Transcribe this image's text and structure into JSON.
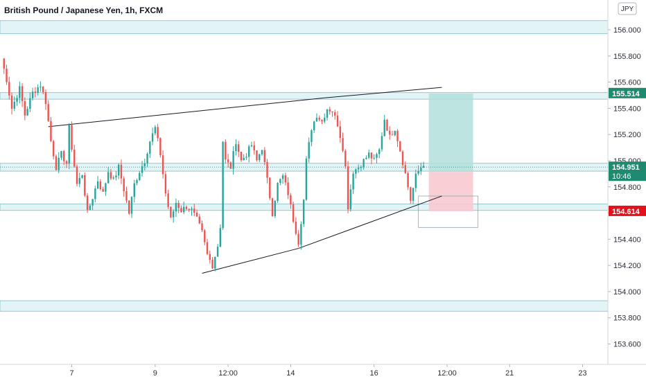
{
  "header": {
    "title": "British Pound / Japanese Yen, 1h, FXCM",
    "currency_badge": "JPY"
  },
  "colors": {
    "up": "#26a69a",
    "down": "#ef5350",
    "zone_fill": "#e3f4f7",
    "zone_stroke": "#80b9c2",
    "profit_fill": "#b2dfdb",
    "loss_fill": "#f8c9cf",
    "current_price_tag": "#1f8a70",
    "entry_tag": "#787b86",
    "stop_tag": "#e0131c"
  },
  "chart_data": {
    "type": "candlestick",
    "title": "British Pound / Japanese Yen, 1h, FXCM",
    "ylim": [
      153.45,
      156.2
    ],
    "y_ticks": [
      "156.000",
      "155.800",
      "155.600",
      "155.400",
      "155.200",
      "155.000",
      "154.800",
      "154.600",
      "154.400",
      "154.200",
      "154.000",
      "153.800",
      "153.600"
    ],
    "y_tick_values": [
      156.0,
      155.8,
      155.6,
      155.4,
      155.2,
      155.0,
      154.8,
      154.6,
      154.4,
      154.2,
      154.0,
      153.8,
      153.6
    ],
    "x_ticks": [
      "7",
      "9",
      "12:00",
      "14",
      "16",
      "12:00",
      "21",
      "23"
    ],
    "x_tick_bars": [
      28,
      60,
      88,
      112,
      144,
      172,
      196,
      224
    ],
    "x_range_bars": [
      1,
      228
    ],
    "grid": false,
    "price_path": [
      [
        1,
        155.78
      ],
      [
        3,
        155.62
      ],
      [
        5,
        155.4
      ],
      [
        8,
        155.55
      ],
      [
        10,
        155.35
      ],
      [
        13,
        155.52
      ],
      [
        16,
        155.58
      ],
      [
        18,
        155.45
      ],
      [
        20,
        155.15
      ],
      [
        22,
        154.95
      ],
      [
        24,
        155.05
      ],
      [
        26,
        154.98
      ],
      [
        27,
        155.25
      ],
      [
        28,
        155.1
      ],
      [
        30,
        154.82
      ],
      [
        32,
        154.9
      ],
      [
        34,
        154.6
      ],
      [
        36,
        154.72
      ],
      [
        38,
        154.85
      ],
      [
        40,
        154.75
      ],
      [
        42,
        154.92
      ],
      [
        44,
        154.85
      ],
      [
        46,
        154.95
      ],
      [
        48,
        154.78
      ],
      [
        50,
        154.6
      ],
      [
        52,
        154.82
      ],
      [
        54,
        154.92
      ],
      [
        56,
        155.0
      ],
      [
        58,
        155.15
      ],
      [
        60,
        155.25
      ],
      [
        62,
        155.05
      ],
      [
        64,
        154.75
      ],
      [
        66,
        154.55
      ],
      [
        68,
        154.68
      ],
      [
        70,
        154.62
      ],
      [
        72,
        154.65
      ],
      [
        74,
        154.62
      ],
      [
        76,
        154.55
      ],
      [
        78,
        154.45
      ],
      [
        80,
        154.28
      ],
      [
        82,
        154.2
      ],
      [
        84,
        154.35
      ],
      [
        85,
        154.5
      ],
      [
        86,
        155.15
      ],
      [
        87,
        155.0
      ],
      [
        89,
        154.95
      ],
      [
        91,
        155.15
      ],
      [
        93,
        155.0
      ],
      [
        95,
        155.05
      ],
      [
        97,
        155.12
      ],
      [
        99,
        155.0
      ],
      [
        101,
        155.1
      ],
      [
        103,
        154.85
      ],
      [
        105,
        154.6
      ],
      [
        107,
        154.82
      ],
      [
        109,
        154.88
      ],
      [
        111,
        154.75
      ],
      [
        113,
        154.55
      ],
      [
        115,
        154.38
      ],
      [
        117,
        154.7
      ],
      [
        118,
        155.0
      ],
      [
        120,
        155.25
      ],
      [
        122,
        155.35
      ],
      [
        124,
        155.3
      ],
      [
        126,
        155.4
      ],
      [
        128,
        155.38
      ],
      [
        130,
        155.28
      ],
      [
        132,
        155.1
      ],
      [
        133,
        154.95
      ],
      [
        134,
        154.65
      ],
      [
        136,
        154.92
      ],
      [
        138,
        154.95
      ],
      [
        140,
        155.0
      ],
      [
        142,
        155.05
      ],
      [
        144,
        155.0
      ],
      [
        146,
        155.08
      ],
      [
        148,
        155.32
      ],
      [
        150,
        155.18
      ],
      [
        152,
        155.25
      ],
      [
        154,
        155.08
      ],
      [
        156,
        154.9
      ],
      [
        158,
        154.7
      ],
      [
        160,
        154.88
      ],
      [
        161,
        154.92
      ],
      [
        162,
        154.95
      ],
      [
        163,
        154.96
      ]
    ],
    "horizontal_zones": [
      [
        155.97,
        156.07
      ],
      [
        155.47,
        155.52
      ],
      [
        154.92,
        154.98
      ],
      [
        154.62,
        154.67
      ],
      [
        153.85,
        153.93
      ]
    ],
    "trend_lines": [
      {
        "from": [
          19,
          155.26
        ],
        "to": [
          125,
          155.48
        ]
      },
      {
        "from": [
          125,
          155.48
        ],
        "to": [
          170,
          155.56
        ]
      },
      {
        "from": [
          78,
          154.14
        ],
        "to": [
          115,
          154.33
        ]
      },
      {
        "from": [
          115,
          154.33
        ],
        "to": [
          170,
          154.73
        ]
      }
    ],
    "position": {
      "entry": 154.914,
      "target": 155.514,
      "stop": 154.614,
      "from_bar": 165,
      "to_bar": 182
    },
    "price_tags": {
      "target": "155.514",
      "current": "154.951",
      "countdown": "10:46",
      "entry": "154.914",
      "stop": "154.614"
    },
    "top_partial_tick": "0"
  }
}
